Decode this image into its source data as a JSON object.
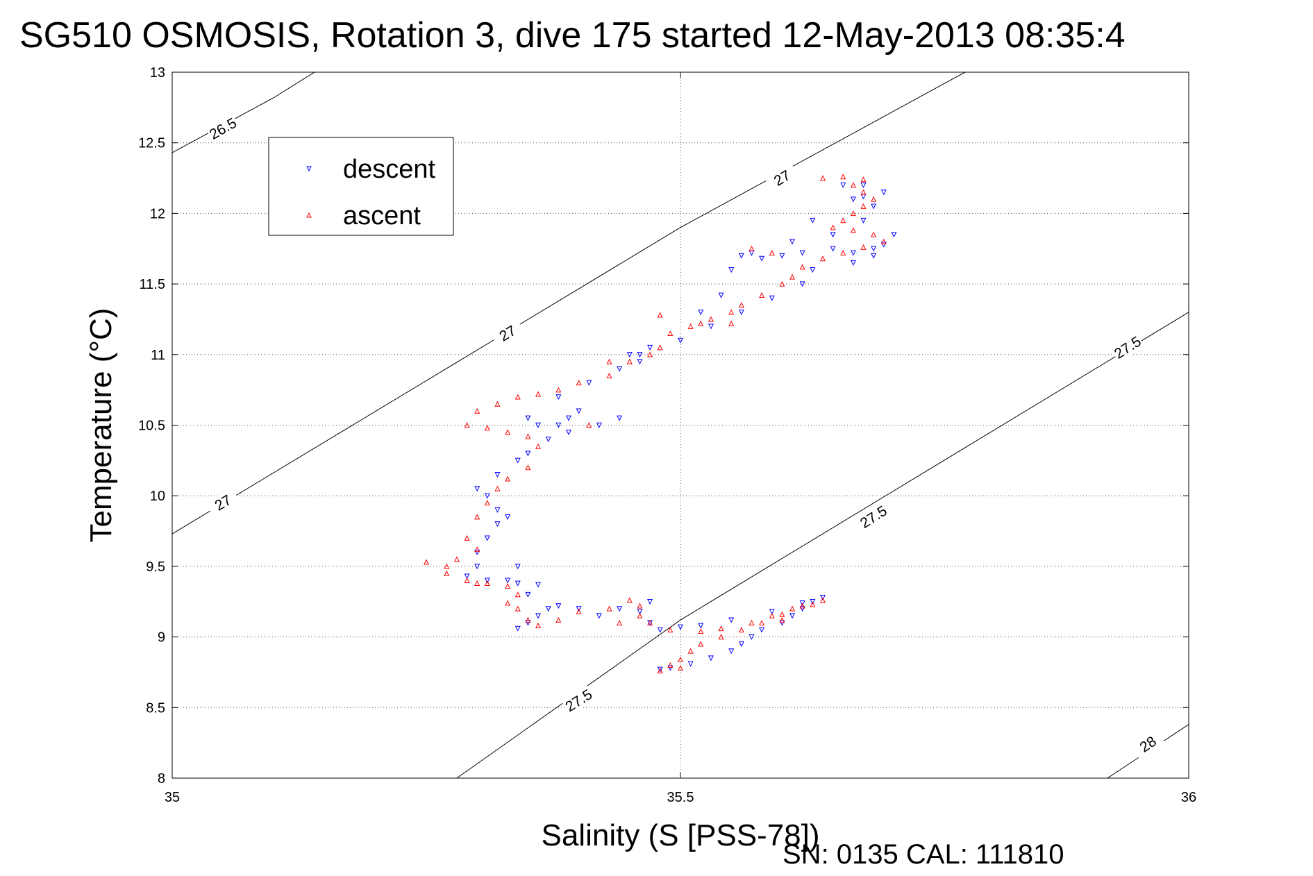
{
  "chart_data": {
    "type": "scatter",
    "title": "SG510 OSMOSIS, Rotation 3, dive 175 started 12-May-2013 08:35:4",
    "xlabel": "Salinity (S [PSS-78])",
    "ylabel": "Temperature (°C)",
    "xlim": [
      35,
      36
    ],
    "ylim": [
      8,
      13
    ],
    "x_ticks": [
      35,
      35.5,
      36
    ],
    "x_tick_labels": [
      "35",
      "35.5",
      "36"
    ],
    "y_ticks": [
      8,
      8.5,
      9,
      9.5,
      10,
      10.5,
      11,
      11.5,
      12,
      12.5,
      13
    ],
    "y_tick_labels": [
      "8",
      "8.5",
      "9",
      "9.5",
      "10",
      "10.5",
      "11",
      "11.5",
      "12",
      "12.5",
      "13"
    ],
    "grid": true,
    "grid_style": "dotted",
    "legend_position": "top-left",
    "footer": "SN: 0135  CAL: 111810",
    "series": [
      {
        "name": "descent",
        "color": "#0000ff",
        "marker": "triangle-down",
        "points": [
          [
            35.48,
            8.77
          ],
          [
            35.49,
            8.78
          ],
          [
            35.51,
            8.81
          ],
          [
            35.53,
            8.85
          ],
          [
            35.55,
            8.9
          ],
          [
            35.56,
            8.95
          ],
          [
            35.57,
            9.0
          ],
          [
            35.58,
            9.05
          ],
          [
            35.6,
            9.1
          ],
          [
            35.61,
            9.15
          ],
          [
            35.62,
            9.2
          ],
          [
            35.63,
            9.25
          ],
          [
            35.64,
            9.28
          ],
          [
            35.62,
            9.24
          ],
          [
            35.59,
            9.18
          ],
          [
            35.55,
            9.12
          ],
          [
            35.52,
            9.08
          ],
          [
            35.5,
            9.07
          ],
          [
            35.48,
            9.05
          ],
          [
            35.47,
            9.1
          ],
          [
            35.46,
            9.18
          ],
          [
            35.47,
            9.25
          ],
          [
            35.44,
            9.2
          ],
          [
            35.42,
            9.15
          ],
          [
            35.4,
            9.2
          ],
          [
            35.38,
            9.22
          ],
          [
            35.37,
            9.2
          ],
          [
            35.36,
            9.15
          ],
          [
            35.35,
            9.1
          ],
          [
            35.34,
            9.06
          ],
          [
            35.35,
            9.3
          ],
          [
            35.36,
            9.37
          ],
          [
            35.34,
            9.38
          ],
          [
            35.33,
            9.4
          ],
          [
            35.31,
            9.4
          ],
          [
            35.29,
            9.43
          ],
          [
            35.3,
            9.5
          ],
          [
            35.3,
            9.6
          ],
          [
            35.31,
            9.7
          ],
          [
            35.32,
            9.8
          ],
          [
            35.32,
            9.9
          ],
          [
            35.31,
            10.0
          ],
          [
            35.3,
            10.05
          ],
          [
            35.32,
            10.15
          ],
          [
            35.34,
            10.25
          ],
          [
            35.35,
            10.3
          ],
          [
            35.37,
            10.4
          ],
          [
            35.38,
            10.5
          ],
          [
            35.4,
            10.6
          ],
          [
            35.39,
            10.55
          ],
          [
            35.36,
            10.5
          ],
          [
            35.35,
            10.55
          ],
          [
            35.38,
            10.7
          ],
          [
            35.41,
            10.8
          ],
          [
            35.44,
            10.9
          ],
          [
            35.46,
            11.0
          ],
          [
            35.47,
            11.05
          ],
          [
            35.45,
            11.0
          ],
          [
            35.46,
            10.95
          ],
          [
            35.5,
            11.1
          ],
          [
            35.53,
            11.2
          ],
          [
            35.56,
            11.3
          ],
          [
            35.59,
            11.4
          ],
          [
            35.62,
            11.5
          ],
          [
            35.63,
            11.6
          ],
          [
            35.6,
            11.7
          ],
          [
            35.62,
            11.72
          ],
          [
            35.65,
            11.75
          ],
          [
            35.67,
            11.72
          ],
          [
            35.69,
            11.7
          ],
          [
            35.7,
            11.78
          ],
          [
            35.71,
            11.85
          ],
          [
            35.69,
            11.75
          ],
          [
            35.67,
            11.65
          ],
          [
            35.65,
            11.85
          ],
          [
            35.63,
            11.95
          ],
          [
            35.61,
            11.8
          ],
          [
            35.68,
            11.95
          ],
          [
            35.69,
            12.05
          ],
          [
            35.68,
            12.12
          ],
          [
            35.7,
            12.15
          ],
          [
            35.68,
            12.2
          ],
          [
            35.67,
            12.1
          ],
          [
            35.66,
            12.2
          ],
          [
            35.58,
            11.68
          ],
          [
            35.57,
            11.72
          ],
          [
            35.56,
            11.7
          ],
          [
            35.55,
            11.6
          ],
          [
            35.54,
            11.42
          ],
          [
            35.52,
            11.3
          ],
          [
            35.42,
            10.5
          ],
          [
            35.44,
            10.55
          ],
          [
            35.39,
            10.45
          ],
          [
            35.33,
            9.85
          ],
          [
            35.34,
            9.5
          ]
        ]
      },
      {
        "name": "ascent",
        "color": "#ff0000",
        "marker": "triangle-up",
        "points": [
          [
            35.48,
            8.76
          ],
          [
            35.49,
            8.8
          ],
          [
            35.5,
            8.84
          ],
          [
            35.51,
            8.9
          ],
          [
            35.52,
            8.95
          ],
          [
            35.54,
            9.0
          ],
          [
            35.56,
            9.05
          ],
          [
            35.58,
            9.1
          ],
          [
            35.59,
            9.15
          ],
          [
            35.61,
            9.2
          ],
          [
            35.63,
            9.23
          ],
          [
            35.64,
            9.26
          ],
          [
            35.62,
            9.22
          ],
          [
            35.6,
            9.16
          ],
          [
            35.57,
            9.1
          ],
          [
            35.54,
            9.06
          ],
          [
            35.52,
            9.04
          ],
          [
            35.49,
            9.05
          ],
          [
            35.47,
            9.1
          ],
          [
            35.46,
            9.15
          ],
          [
            35.46,
            9.22
          ],
          [
            35.45,
            9.26
          ],
          [
            35.43,
            9.2
          ],
          [
            35.4,
            9.18
          ],
          [
            35.38,
            9.12
          ],
          [
            35.36,
            9.08
          ],
          [
            35.35,
            9.12
          ],
          [
            35.34,
            9.2
          ],
          [
            35.33,
            9.24
          ],
          [
            35.34,
            9.3
          ],
          [
            35.33,
            9.36
          ],
          [
            35.31,
            9.38
          ],
          [
            35.29,
            9.4
          ],
          [
            35.27,
            9.45
          ],
          [
            35.25,
            9.53
          ],
          [
            35.28,
            9.55
          ],
          [
            35.3,
            9.62
          ],
          [
            35.29,
            9.7
          ],
          [
            35.3,
            9.85
          ],
          [
            35.31,
            9.95
          ],
          [
            35.32,
            10.05
          ],
          [
            35.33,
            10.12
          ],
          [
            35.35,
            10.2
          ],
          [
            35.36,
            10.35
          ],
          [
            35.35,
            10.42
          ],
          [
            35.33,
            10.45
          ],
          [
            35.31,
            10.48
          ],
          [
            35.29,
            10.5
          ],
          [
            35.3,
            10.6
          ],
          [
            35.32,
            10.65
          ],
          [
            35.34,
            10.7
          ],
          [
            35.36,
            10.72
          ],
          [
            35.38,
            10.75
          ],
          [
            35.4,
            10.8
          ],
          [
            35.43,
            10.85
          ],
          [
            35.45,
            10.95
          ],
          [
            35.47,
            11.0
          ],
          [
            35.48,
            11.05
          ],
          [
            35.49,
            11.15
          ],
          [
            35.51,
            11.2
          ],
          [
            35.53,
            11.25
          ],
          [
            35.55,
            11.3
          ],
          [
            35.56,
            11.35
          ],
          [
            35.58,
            11.42
          ],
          [
            35.6,
            11.5
          ],
          [
            35.61,
            11.55
          ],
          [
            35.62,
            11.62
          ],
          [
            35.64,
            11.68
          ],
          [
            35.66,
            11.72
          ],
          [
            35.68,
            11.76
          ],
          [
            35.7,
            11.8
          ],
          [
            35.69,
            11.85
          ],
          [
            35.67,
            11.88
          ],
          [
            35.65,
            11.9
          ],
          [
            35.66,
            11.95
          ],
          [
            35.67,
            12.0
          ],
          [
            35.68,
            12.05
          ],
          [
            35.69,
            12.1
          ],
          [
            35.68,
            12.15
          ],
          [
            35.67,
            12.2
          ],
          [
            35.68,
            12.24
          ],
          [
            35.66,
            12.26
          ],
          [
            35.64,
            12.25
          ],
          [
            35.57,
            11.75
          ],
          [
            35.59,
            11.72
          ],
          [
            35.55,
            11.22
          ],
          [
            35.52,
            11.22
          ],
          [
            35.48,
            11.28
          ],
          [
            35.43,
            10.95
          ],
          [
            35.41,
            10.5
          ],
          [
            35.27,
            9.5
          ],
          [
            35.3,
            9.38
          ],
          [
            35.44,
            9.1
          ],
          [
            35.5,
            8.78
          ],
          [
            35.6,
            9.12
          ]
        ]
      }
    ],
    "isopycnals": [
      {
        "label": "26.5",
        "points": [
          [
            35,
            12.43
          ],
          [
            35.1,
            12.82
          ],
          [
            35.14,
            13.0
          ]
        ],
        "label_positions": [
          [
            35.05,
            12.6
          ]
        ]
      },
      {
        "label": "27",
        "points": [
          [
            35,
            9.73
          ],
          [
            35.5,
            11.9
          ],
          [
            35.78,
            13.0
          ]
        ],
        "label_positions": [
          [
            35.05,
            9.95
          ],
          [
            35.33,
            11.15
          ],
          [
            35.6,
            12.25
          ]
        ]
      },
      {
        "label": "27.5",
        "points": [
          [
            35.28,
            8.0
          ],
          [
            35.5,
            9.12
          ],
          [
            36.0,
            11.3
          ]
        ],
        "label_positions": [
          [
            35.4,
            8.55
          ],
          [
            35.69,
            9.85
          ],
          [
            35.94,
            11.05
          ]
        ]
      },
      {
        "label": "28",
        "points": [
          [
            35.92,
            8.0
          ],
          [
            36.0,
            8.38
          ]
        ],
        "label_positions": [
          [
            35.96,
            8.24
          ]
        ]
      }
    ]
  }
}
